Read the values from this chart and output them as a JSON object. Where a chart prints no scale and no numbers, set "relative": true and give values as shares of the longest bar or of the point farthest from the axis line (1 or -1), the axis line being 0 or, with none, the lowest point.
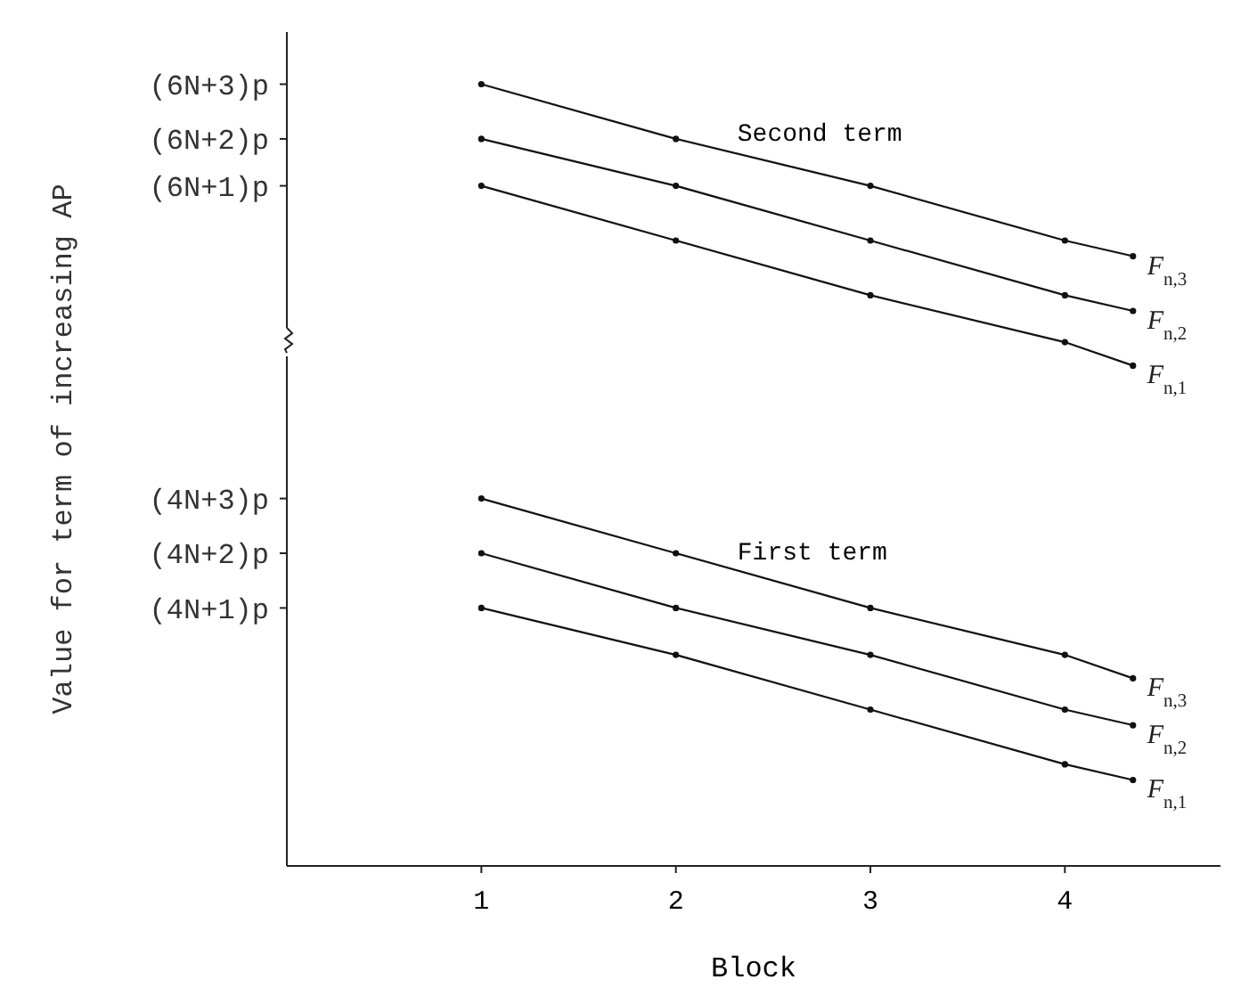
{
  "chart_data": {
    "type": "line",
    "xlabel": "Block",
    "relative": true,
    "xlim": [
      0,
      4.8
    ],
    "xticks": [
      1,
      2,
      3,
      4
    ],
    "x": [
      1,
      2,
      3,
      4,
      4.35
    ],
    "grid": false,
    "legend": false,
    "marker": "circle",
    "line_style": "solid",
    "series": [
      {
        "name": "F$_{n,3}$",
        "color": "#111111",
        "values": [
          1,
          0.93,
          0.87,
          0.8,
          0.78
        ]
      },
      {
        "name": "F$_{n,2}$",
        "color": "#111111",
        "values": [
          0.93,
          0.87,
          0.8,
          0.73,
          0.71
        ]
      },
      {
        "name": "F$_{n,1}$",
        "color": "#111111",
        "values": [
          0.87,
          0.8,
          0.73,
          0.67,
          0.64
        ]
      },
      {
        "name": "F$_{n,3}$",
        "color": "#111111",
        "values": [
          0.47,
          0.4,
          0.33,
          0.27,
          0.24
        ]
      },
      {
        "name": "F$_{n,2}$",
        "color": "#111111",
        "values": [
          0.4,
          0.33,
          0.27,
          0.2,
          0.18
        ]
      },
      {
        "name": "F$_{n,1}$",
        "color": "#111111",
        "values": [
          0.33,
          0.27,
          0.2,
          0.13,
          0.11
        ]
      }
    ],
    "annotations": [
      "Second term",
      "First term",
      "(6N+3)p",
      "(6N+2)p",
      "(6N+1)p",
      "(4N+3)p",
      "(4N+2)p",
      "(4N+1)p",
      "Value for term of increasing AP"
    ]
  }
}
